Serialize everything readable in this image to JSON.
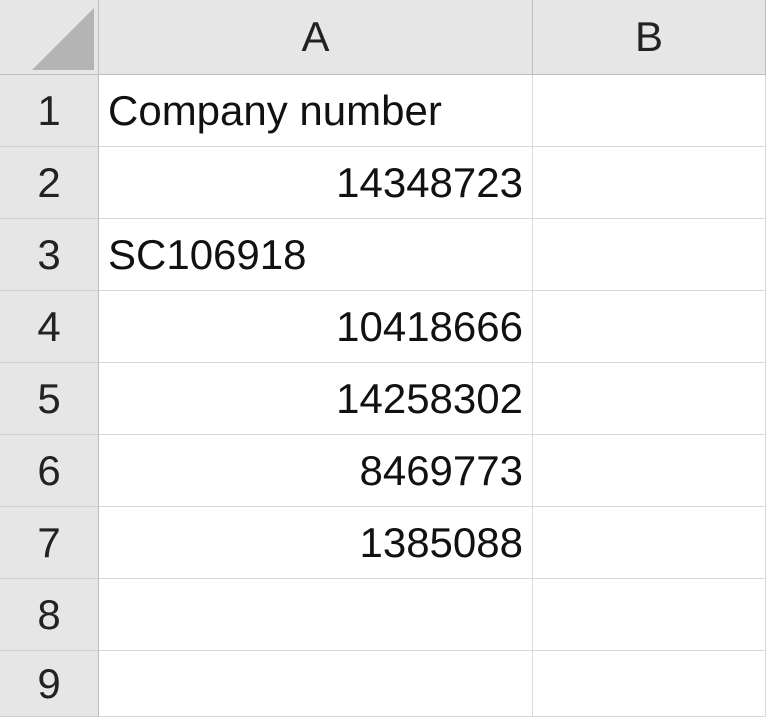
{
  "sheet": {
    "columns": [
      "A",
      "B"
    ],
    "rows": [
      {
        "num": "1",
        "a": "Company number",
        "a_type": "txt",
        "b": ""
      },
      {
        "num": "2",
        "a": "14348723",
        "a_type": "num",
        "b": ""
      },
      {
        "num": "3",
        "a": "SC106918",
        "a_type": "txt",
        "b": ""
      },
      {
        "num": "4",
        "a": "10418666",
        "a_type": "num",
        "b": ""
      },
      {
        "num": "5",
        "a": "14258302",
        "a_type": "num",
        "b": ""
      },
      {
        "num": "6",
        "a": "8469773",
        "a_type": "num",
        "b": ""
      },
      {
        "num": "7",
        "a": "1385088",
        "a_type": "num",
        "b": ""
      },
      {
        "num": "8",
        "a": "",
        "a_type": "txt",
        "b": ""
      },
      {
        "num": "9",
        "a": "",
        "a_type": "txt",
        "b": ""
      }
    ]
  }
}
